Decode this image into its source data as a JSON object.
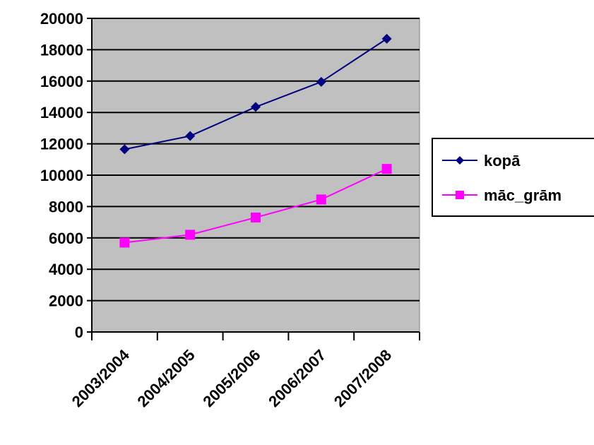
{
  "chart_data": {
    "type": "line",
    "categories": [
      "2003/2004",
      "2004/2005",
      "2005/2006",
      "2006/2007",
      "2007/2008"
    ],
    "series": [
      {
        "name": "kopā",
        "values": [
          11650,
          12500,
          14350,
          15950,
          18700
        ],
        "color": "#000080",
        "marker": "diamond"
      },
      {
        "name": "māc_grām",
        "values": [
          5700,
          6200,
          7300,
          8450,
          10400
        ],
        "color": "#ff00ff",
        "marker": "square"
      }
    ],
    "y_ticks": [
      "0",
      "2000",
      "4000",
      "6000",
      "8000",
      "10000",
      "12000",
      "14000",
      "16000",
      "18000",
      "20000"
    ],
    "ylim": [
      0,
      20000
    ],
    "grid": true,
    "plot_background": "#c0c0c0",
    "legend_position": "right"
  }
}
